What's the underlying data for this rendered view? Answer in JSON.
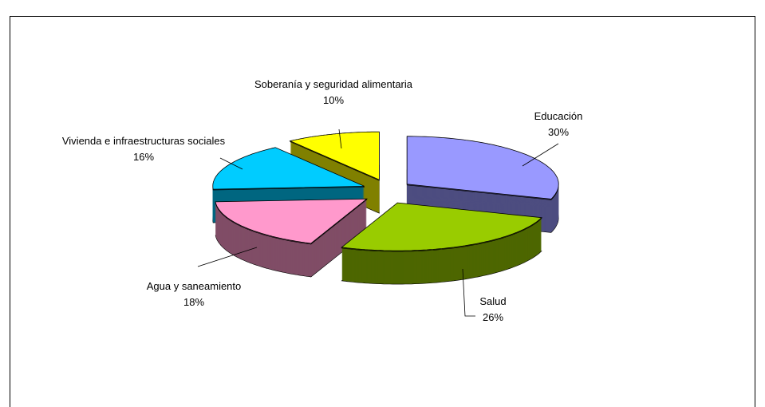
{
  "chart_data": {
    "type": "pie3d",
    "categories": [
      "Educación",
      "Salud",
      "Agua y saneamiento",
      "Vivienda e infraestructuras sociales",
      "Soberanía y seguridad alimentaria"
    ],
    "values": [
      30,
      26,
      18,
      16,
      10
    ],
    "value_labels": [
      "30%",
      "26%",
      "18%",
      "16%",
      "10%"
    ],
    "colors": [
      "#9999ff",
      "#99cc00",
      "#ff99cc",
      "#00ccff",
      "#ffff00"
    ]
  }
}
